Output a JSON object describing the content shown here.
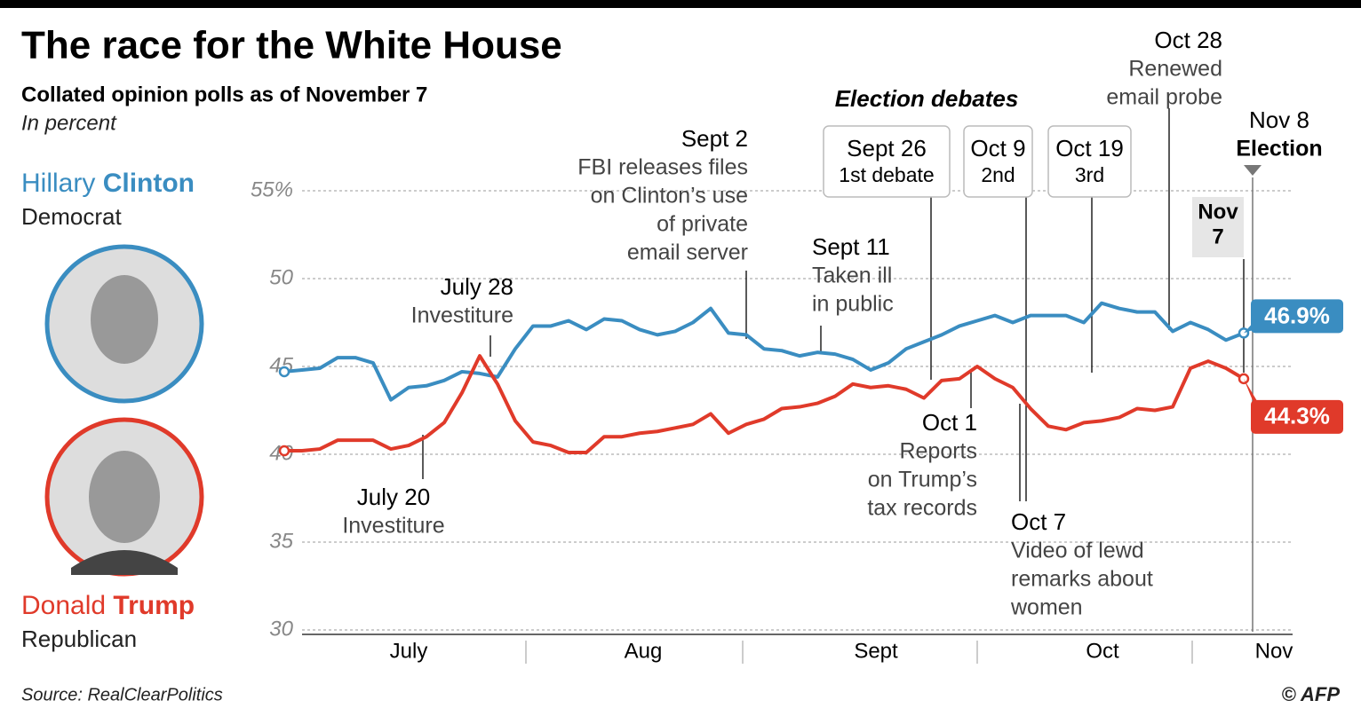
{
  "chart_data": {
    "type": "line",
    "title": "The race for the White House",
    "subtitle": "Collated opinion polls as of November 7",
    "unit_note": "In percent",
    "source": "Source: RealClearPolitics",
    "credit": "© AFP",
    "x_axis_labels": [
      "July",
      "Aug",
      "Sept",
      "Oct",
      "Nov"
    ],
    "ylim": [
      30,
      55
    ],
    "yticks": [
      {
        "value": 55,
        "label": "55%"
      },
      50,
      45,
      40,
      35,
      30
    ],
    "grid": true,
    "series": [
      {
        "first_name": "Hillary",
        "name": "Clinton",
        "party": "Democrat",
        "color": "#3a8dc1",
        "values": [
          44.7,
          44.8,
          44.9,
          45.5,
          45.5,
          45.2,
          43.1,
          43.8,
          43.9,
          44.2,
          44.7,
          44.6,
          44.4,
          46.0,
          47.3,
          47.3,
          47.6,
          47.1,
          47.7,
          47.6,
          47.1,
          46.8,
          47.0,
          47.5,
          48.3,
          46.9,
          46.8,
          46.0,
          45.9,
          45.6,
          45.8,
          45.7,
          45.4,
          44.8,
          45.2,
          46.0,
          46.4,
          46.8,
          47.3,
          47.6,
          47.9,
          47.5,
          47.9,
          47.9,
          47.9,
          47.5,
          48.6,
          48.3,
          48.1,
          48.1,
          47.0,
          47.5,
          47.1,
          46.5,
          46.9
        ],
        "value_labels": [
          null,
          null,
          null,
          null,
          null,
          null,
          null,
          null,
          null,
          null,
          null,
          null,
          null,
          null,
          null,
          null,
          null,
          null,
          null,
          null,
          null,
          null,
          null,
          null,
          null,
          null,
          null,
          null,
          null,
          null,
          null,
          null,
          null,
          null,
          null,
          null,
          null,
          null,
          null,
          null,
          null,
          null,
          null,
          null,
          null,
          null,
          null,
          null,
          null,
          null,
          null,
          null,
          null,
          null,
          "46.9%"
        ]
      },
      {
        "first_name": "Donald",
        "name": "Trump",
        "party": "Republican",
        "color": "#e03a2a",
        "values": [
          40.2,
          40.2,
          40.3,
          40.8,
          40.8,
          40.8,
          40.3,
          40.5,
          41.0,
          41.8,
          43.5,
          45.6,
          44.0,
          41.9,
          40.7,
          40.5,
          40.1,
          40.1,
          41.0,
          41.0,
          41.2,
          41.3,
          41.5,
          41.7,
          42.3,
          41.2,
          41.7,
          42.0,
          42.6,
          42.7,
          42.9,
          43.3,
          44.0,
          43.8,
          43.9,
          43.7,
          43.2,
          44.2,
          44.3,
          45.0,
          44.3,
          43.8,
          42.6,
          41.6,
          41.4,
          41.8,
          41.9,
          42.1,
          42.6,
          42.5,
          42.7,
          44.9,
          45.3,
          44.9,
          44.3
        ],
        "value_labels": [
          null,
          null,
          null,
          null,
          null,
          null,
          null,
          null,
          null,
          null,
          null,
          null,
          null,
          null,
          null,
          null,
          null,
          null,
          null,
          null,
          null,
          null,
          null,
          null,
          null,
          null,
          null,
          null,
          null,
          null,
          null,
          null,
          null,
          null,
          null,
          null,
          null,
          null,
          null,
          null,
          null,
          null,
          null,
          null,
          null,
          null,
          null,
          null,
          null,
          null,
          null,
          null,
          null,
          null,
          "44.3%"
        ]
      }
    ],
    "annotations": [
      {
        "lines": [
          "July 28",
          "Investiture"
        ]
      },
      {
        "lines": [
          "July 20",
          "Investiture"
        ]
      },
      {
        "lines": [
          "Sept 2",
          "FBI releases files",
          "on Clinton’s use",
          "of private",
          "email server"
        ]
      },
      {
        "lines": [
          "Sept 11",
          "Taken ill",
          "in public"
        ]
      },
      {
        "lines": [
          "Oct 28",
          "Renewed",
          "email probe"
        ]
      },
      {
        "lines": [
          "Oct 1",
          "Reports",
          "on Trump’s",
          "tax records"
        ]
      },
      {
        "lines": [
          "Oct 7",
          "Video of lewd",
          "remarks about",
          "women"
        ]
      }
    ],
    "debates": {
      "title": "Election debates",
      "items": [
        {
          "lines": [
            "Sept 26",
            "1st debate"
          ]
        },
        {
          "lines": [
            "Oct 9",
            "2nd"
          ]
        },
        {
          "lines": [
            "Oct 19",
            "3rd"
          ]
        }
      ]
    },
    "election": {
      "lines": [
        "Nov 8",
        "Election"
      ]
    },
    "poll_date": {
      "lines": [
        "Nov",
        "7"
      ]
    }
  }
}
